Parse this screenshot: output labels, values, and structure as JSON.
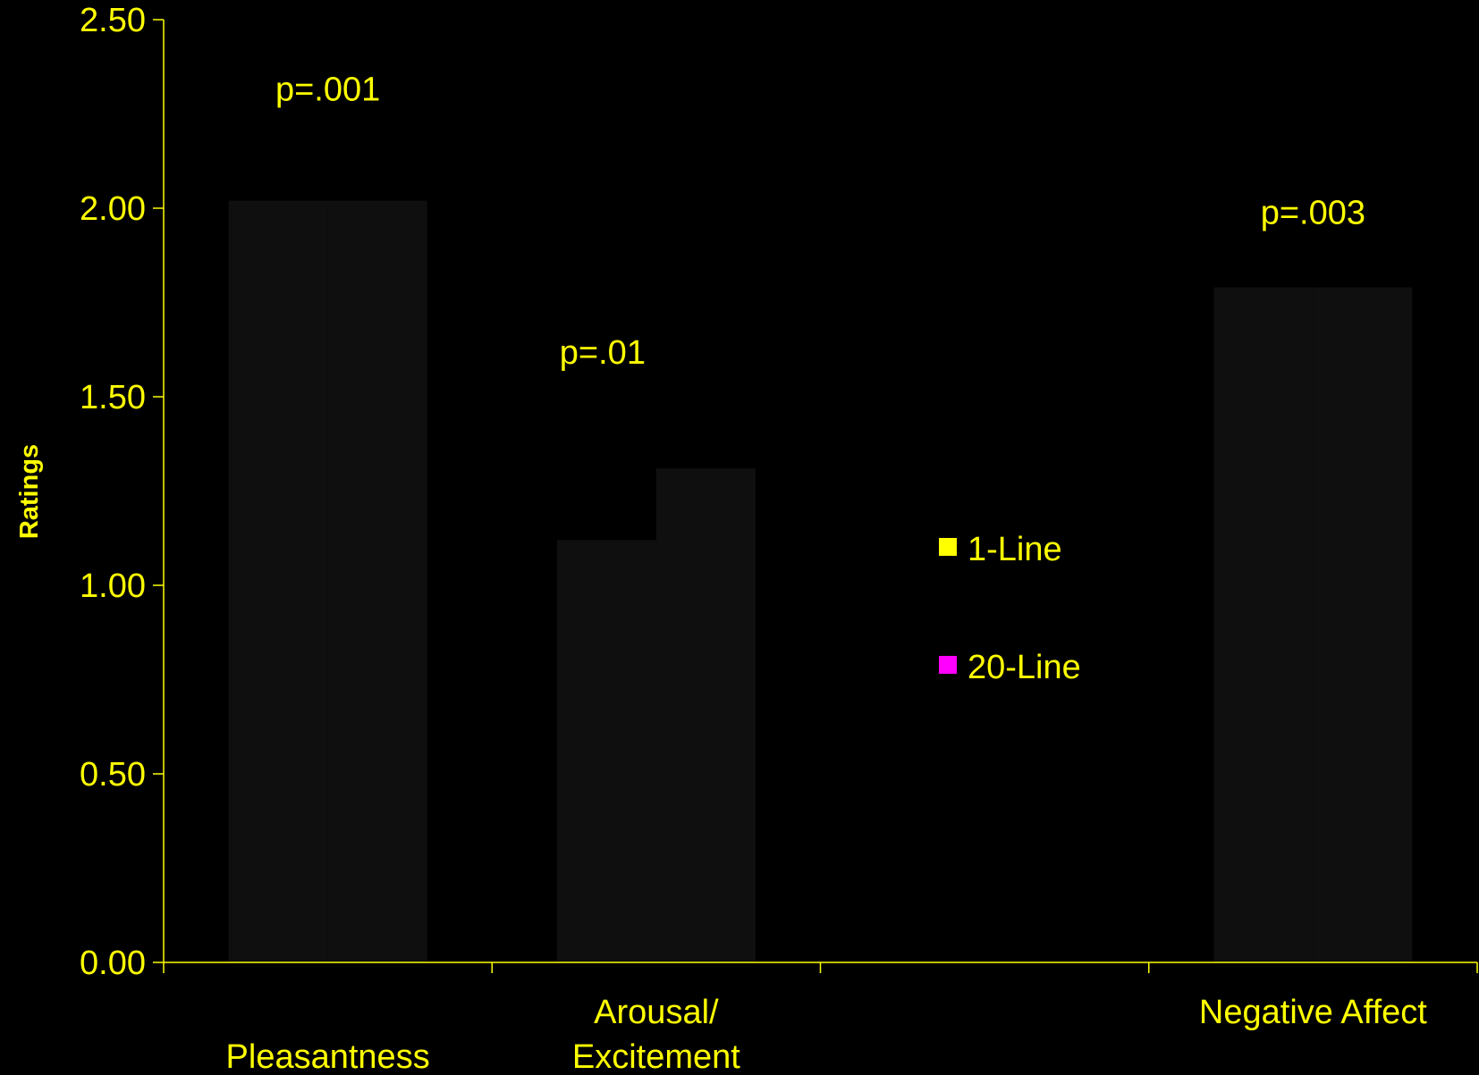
{
  "colors": {
    "background": "#000000",
    "axis": "#ffff00",
    "text": "#ffff00",
    "bar_fill": "#0f0f0f",
    "series_1line": "#ffff00",
    "series_20line": "#ff00ff"
  },
  "chart_data": {
    "type": "bar",
    "title": "",
    "xlabel": "",
    "ylabel": "Ratings",
    "ylim": [
      0,
      2.5
    ],
    "yticks": [
      "0.00",
      "0.50",
      "1.00",
      "1.50",
      "2.00",
      "2.50"
    ],
    "categories": [
      [
        "Pleasantness"
      ],
      [
        "Arousal/",
        "Excitement"
      ],
      [
        ""
      ],
      [
        "Negative Affect"
      ]
    ],
    "series": [
      {
        "name": "1-Line",
        "values": [
          2.02,
          1.12,
          null,
          1.79
        ]
      },
      {
        "name": "20-Line",
        "values": [
          2.02,
          1.31,
          null,
          1.79
        ]
      }
    ],
    "annotations": [
      "p=.001",
      "p=.01",
      "",
      "p=.003"
    ],
    "legend": {
      "position": "center-right",
      "items": [
        {
          "label": "1-Line",
          "color": "#ffff00"
        },
        {
          "label": "20-Line",
          "color": "#ff00ff"
        }
      ]
    },
    "grid": false
  }
}
